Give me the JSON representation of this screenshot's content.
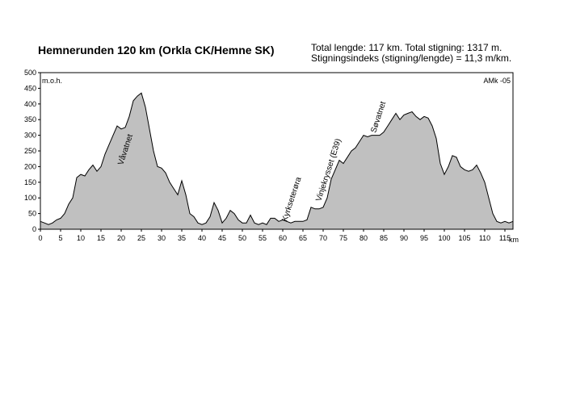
{
  "chart_data": {
    "type": "area",
    "title": "Hemnerunden 120 km (Orkla CK/Hemne SK)",
    "info": [
      "Total lengde: 117 km. Total stigning:  1317 m.",
      "Stigningsindeks (stigning/lengde) = 11,3 m/km."
    ],
    "y_label": "m.o.h.",
    "x_label": "km",
    "credit": "AMk -05",
    "annotations": [
      "Våvatnet",
      "Kyrkseterøra",
      "Vinjekrysset (E39)",
      "Søvatnet"
    ],
    "color": "#c0c0c0",
    "x": [
      0,
      1,
      2,
      3,
      4,
      5,
      6,
      7,
      8,
      9,
      10,
      11,
      12,
      13,
      14,
      15,
      16,
      17,
      18,
      19,
      20,
      21,
      22,
      23,
      24,
      25,
      26,
      27,
      28,
      29,
      30,
      31,
      32,
      33,
      34,
      35,
      36,
      37,
      38,
      39,
      40,
      41,
      42,
      43,
      44,
      45,
      46,
      47,
      48,
      49,
      50,
      51,
      52,
      53,
      54,
      55,
      56,
      57,
      58,
      59,
      60,
      61,
      62,
      63,
      64,
      65,
      66,
      67,
      68,
      69,
      70,
      71,
      72,
      73,
      74,
      75,
      76,
      77,
      78,
      79,
      80,
      81,
      82,
      83,
      84,
      85,
      86,
      87,
      88,
      89,
      90,
      91,
      92,
      93,
      94,
      95,
      96,
      97,
      98,
      99,
      100,
      101,
      102,
      103,
      104,
      105,
      106,
      107,
      108,
      109,
      110,
      111,
      112,
      113,
      114,
      115,
      116,
      117
    ],
    "values": [
      25,
      20,
      15,
      20,
      30,
      35,
      50,
      80,
      100,
      165,
      175,
      170,
      190,
      205,
      185,
      200,
      240,
      270,
      300,
      330,
      320,
      325,
      360,
      410,
      425,
      435,
      390,
      320,
      250,
      200,
      195,
      180,
      150,
      130,
      110,
      155,
      110,
      50,
      40,
      20,
      15,
      20,
      40,
      85,
      60,
      20,
      35,
      60,
      50,
      30,
      20,
      20,
      45,
      20,
      15,
      20,
      15,
      35,
      35,
      25,
      30,
      25,
      20,
      25,
      25,
      25,
      30,
      70,
      65,
      65,
      70,
      100,
      160,
      190,
      220,
      210,
      230,
      250,
      260,
      280,
      300,
      295,
      300,
      300,
      300,
      310,
      330,
      350,
      370,
      350,
      365,
      370,
      375,
      360,
      350,
      360,
      355,
      330,
      290,
      210,
      175,
      200,
      235,
      230,
      200,
      190,
      185,
      190,
      205,
      180,
      150,
      100,
      50,
      25,
      20,
      25,
      20,
      25
    ],
    "xlim": [
      0,
      117
    ],
    "ylim": [
      0,
      500
    ],
    "xticks": [
      0,
      5,
      10,
      15,
      20,
      25,
      30,
      35,
      40,
      45,
      50,
      55,
      60,
      65,
      70,
      75,
      80,
      85,
      90,
      95,
      100,
      105,
      110,
      115
    ],
    "yticks": [
      0,
      50,
      100,
      150,
      200,
      250,
      300,
      350,
      400,
      450,
      500
    ]
  }
}
